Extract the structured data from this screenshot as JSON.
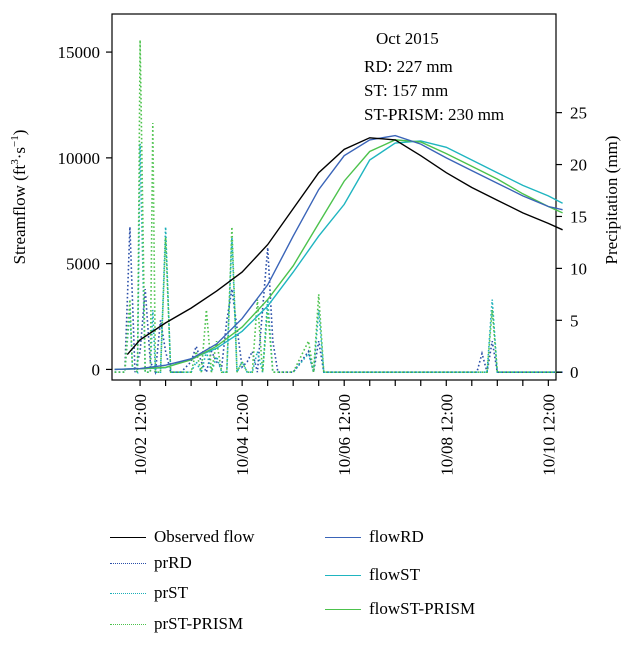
{
  "chart_data": {
    "type": "line",
    "annotation": {
      "title": "Oct 2015",
      "lines": [
        "RD: 227 mm",
        "ST: 157 mm",
        "ST-PRISM: 230 mm"
      ]
    },
    "y_left": {
      "label": "Streamflow (ft³·s⁻¹)",
      "label_base": "Streamflow (ft",
      "label_sup1": "3",
      "label_mid": "·s",
      "label_sup2": "−1",
      "label_end": ")",
      "lim": [
        -500,
        16800
      ],
      "ticks": [
        0,
        5000,
        10000,
        15000
      ],
      "tick_labels": [
        "0",
        "5000",
        "10000",
        "15000"
      ]
    },
    "y_right": {
      "label": "Precipitation (mm)",
      "lim": [
        -0.75,
        34.5
      ],
      "ticks": [
        0,
        5,
        10,
        15,
        20,
        25
      ],
      "tick_labels": [
        "0",
        "5",
        "10",
        "15",
        "20",
        "25"
      ]
    },
    "x_axis": {
      "lim": [
        -0.05,
        8.65
      ],
      "ticks": [
        0.5,
        1,
        1.5,
        2,
        2.5,
        3,
        3.5,
        4,
        4.5,
        5,
        5.5,
        6,
        6.5,
        7,
        7.5,
        8,
        8.5
      ],
      "labeled_ticks": [
        0.5,
        2.5,
        4.5,
        6.5,
        8.5
      ],
      "tick_labels": [
        "10/02 12:00",
        "10/04 12:00",
        "10/06 12:00",
        "10/08 12:00",
        "10/10 12:00"
      ]
    },
    "series": [
      {
        "name": "Observed flow",
        "axis": "left",
        "color": "#000000",
        "style": "solid",
        "x": [
          0.25,
          0.5,
          1.0,
          1.5,
          2.0,
          2.5,
          3.0,
          3.5,
          4.0,
          4.5,
          5.0,
          5.5,
          6.0,
          6.5,
          7.0,
          7.5,
          8.0,
          8.5,
          8.78
        ],
        "y": [
          700,
          1400,
          2200,
          2900,
          3700,
          4600,
          5900,
          7600,
          9300,
          10400,
          10950,
          10850,
          10100,
          9300,
          8600,
          8000,
          7400,
          6900,
          6600
        ]
      },
      {
        "name": "flowRD",
        "axis": "left",
        "color": "#3a64b8",
        "style": "solid",
        "x": [
          0.0,
          0.5,
          1.0,
          1.5,
          2.0,
          2.5,
          3.0,
          3.5,
          4.0,
          4.5,
          5.0,
          5.5,
          6.0,
          6.5,
          7.0,
          7.5,
          8.0,
          8.5,
          8.78
        ],
        "y": [
          0,
          40,
          200,
          500,
          1200,
          2400,
          4000,
          6300,
          8500,
          10100,
          10850,
          11050,
          10650,
          10000,
          9400,
          8800,
          8200,
          7700,
          7550
        ]
      },
      {
        "name": "flowST",
        "axis": "left",
        "color": "#1fb5c0",
        "style": "solid",
        "x": [
          0.0,
          0.5,
          1.0,
          1.5,
          2.0,
          2.5,
          3.0,
          3.5,
          4.0,
          4.5,
          5.0,
          5.5,
          6.0,
          6.5,
          7.0,
          7.5,
          8.0,
          8.5,
          8.78
        ],
        "y": [
          0,
          30,
          80,
          500,
          1000,
          1800,
          3000,
          4600,
          6300,
          7800,
          9900,
          10700,
          10800,
          10500,
          9900,
          9300,
          8700,
          8200,
          7850
        ]
      },
      {
        "name": "flowST-PRISM",
        "axis": "left",
        "color": "#4cc24c",
        "style": "solid",
        "x": [
          0.0,
          0.5,
          1.0,
          1.5,
          2.0,
          2.5,
          3.0,
          3.5,
          4.0,
          4.5,
          5.0,
          5.5,
          6.0,
          6.5,
          7.0,
          7.5,
          8.0,
          8.5,
          8.78
        ],
        "y": [
          0,
          30,
          100,
          450,
          1100,
          2000,
          3300,
          4900,
          6900,
          8900,
          10300,
          10850,
          10750,
          10200,
          9600,
          9000,
          8300,
          7700,
          7400
        ]
      },
      {
        "name": "prRD",
        "axis": "right",
        "color": "#2a4ea8",
        "style": "dotted",
        "x": [
          0.0,
          0.2,
          0.3,
          0.4,
          0.5,
          0.6,
          0.7,
          0.8,
          0.9,
          1.0,
          1.1,
          1.2,
          1.3,
          1.5,
          1.6,
          1.7,
          1.8,
          1.9,
          2.0,
          2.1,
          2.2,
          2.3,
          2.5,
          2.6,
          2.7,
          2.8,
          3.0,
          3.1,
          3.2,
          3.3,
          3.5,
          3.8,
          3.9,
          4.0,
          4.1,
          7.0,
          7.1,
          7.2,
          7.3,
          7.4,
          7.5,
          8.78
        ],
        "y": [
          0,
          0,
          14,
          0,
          2,
          8,
          1,
          0,
          5,
          2,
          0,
          0,
          0,
          1,
          2.5,
          1,
          0,
          2,
          1,
          0.5,
          5,
          8,
          0.5,
          1,
          2,
          0,
          12,
          3,
          0,
          0,
          0,
          2,
          0,
          3,
          0,
          0,
          0,
          1.8,
          0,
          3,
          0,
          0
        ]
      },
      {
        "name": "prST",
        "axis": "right",
        "color": "#1aaeb8",
        "style": "dotted",
        "x": [
          0.0,
          0.2,
          0.3,
          0.35,
          0.45,
          0.5,
          0.6,
          0.7,
          0.75,
          0.8,
          0.9,
          1.0,
          1.1,
          1.2,
          1.5,
          1.6,
          1.7,
          1.8,
          1.9,
          2.0,
          2.1,
          2.2,
          2.3,
          2.4,
          2.5,
          2.6,
          2.7,
          2.8,
          2.9,
          3.0,
          3.1,
          3.2,
          3.3,
          3.5,
          3.8,
          3.9,
          4.0,
          4.1,
          7.0,
          7.3,
          7.4,
          7.5,
          8.78
        ],
        "y": [
          0,
          0,
          6,
          0.5,
          0,
          22,
          0,
          0,
          6,
          0,
          0,
          14,
          0,
          0,
          0,
          1,
          0,
          2,
          0,
          1.5,
          0,
          0,
          13,
          0,
          1,
          0,
          0,
          2,
          0,
          7,
          0,
          0,
          0,
          0,
          1.8,
          0,
          6,
          0,
          0,
          0,
          7,
          0,
          0
        ]
      },
      {
        "name": "prST-PRISM",
        "axis": "right",
        "color": "#4cc24c",
        "style": "dotted",
        "x": [
          0.0,
          0.2,
          0.3,
          0.35,
          0.45,
          0.5,
          0.6,
          0.7,
          0.75,
          0.8,
          0.9,
          1.0,
          1.1,
          1.2,
          1.5,
          1.6,
          1.7,
          1.8,
          1.9,
          2.0,
          2.1,
          2.2,
          2.3,
          2.4,
          2.5,
          2.6,
          2.7,
          2.8,
          2.9,
          3.0,
          3.1,
          3.2,
          3.3,
          3.5,
          3.8,
          3.9,
          4.0,
          4.1,
          7.0,
          7.3,
          7.4,
          7.5,
          8.78
        ],
        "y": [
          0,
          0,
          7,
          0.5,
          0,
          32,
          0,
          0,
          24,
          0,
          0,
          13,
          0,
          0,
          0,
          2,
          0,
          6,
          0,
          3,
          0,
          0,
          14,
          0,
          1,
          0,
          0,
          7,
          0,
          6,
          0,
          0,
          0,
          0,
          3,
          0,
          7.5,
          0,
          0,
          0,
          6,
          0,
          0
        ]
      }
    ],
    "legend": {
      "placement": "bottom",
      "items": [
        {
          "label": "Observed flow",
          "series": "Observed flow"
        },
        {
          "label": "prRD",
          "series": "prRD"
        },
        {
          "label": "prST",
          "series": "prST"
        },
        {
          "label": "prST-PRISM",
          "series": "prST-PRISM"
        },
        {
          "label": "flowRD",
          "series": "flowRD"
        },
        {
          "label": "flowST",
          "series": "flowST"
        },
        {
          "label": "flowST-PRISM",
          "series": "flowST-PRISM"
        }
      ]
    },
    "grid": false
  }
}
